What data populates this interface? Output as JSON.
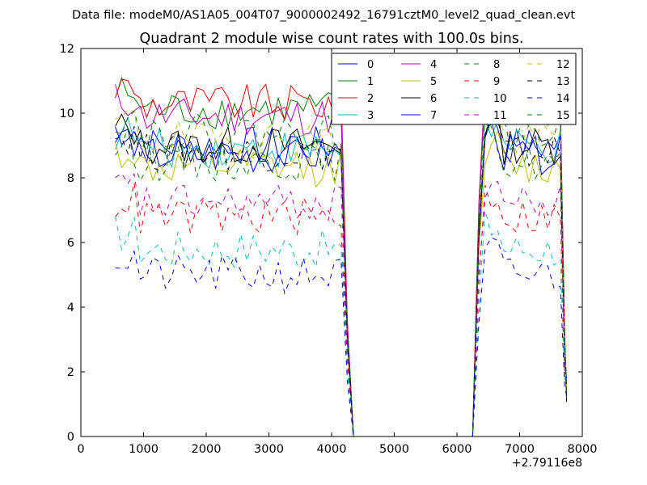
{
  "suptitle": "Data file: modeM0/AS1A05_004T07_9000002492_16791cztM0_level2_quad_clean.evt",
  "chart_data": {
    "type": "line",
    "title": "Quadrant 2 module wise count rates with 100.0s bins.",
    "xlabel": "",
    "ylabel": "",
    "x_offset_label": "+2.79116e8",
    "xlim": [
      0,
      8000
    ],
    "ylim": [
      0,
      12
    ],
    "x_ticks": [
      "0",
      "1000",
      "2000",
      "3000",
      "4000",
      "5000",
      "6000",
      "7000",
      "8000"
    ],
    "y_ticks": [
      "0",
      "2",
      "4",
      "6",
      "8",
      "10",
      "12"
    ],
    "grid": false,
    "legend_position": "top-right",
    "legend_columns": 4,
    "series": [
      {
        "name": "0",
        "color": "#0000ff",
        "dash": "solid",
        "level": 9.0
      },
      {
        "name": "1",
        "color": "#008000",
        "dash": "solid",
        "level": 10.1
      },
      {
        "name": "2",
        "color": "#ff0000",
        "dash": "solid",
        "level": 10.3
      },
      {
        "name": "3",
        "color": "#00bfbf",
        "dash": "solid",
        "level": 8.9
      },
      {
        "name": "4",
        "color": "#bf00bf",
        "dash": "solid",
        "level": 9.9
      },
      {
        "name": "5",
        "color": "#bfbf00",
        "dash": "solid",
        "level": 8.3
      },
      {
        "name": "6",
        "color": "#000000",
        "dash": "solid",
        "level": 9.0
      },
      {
        "name": "7",
        "color": "#0000ff",
        "dash": "solid",
        "level": 8.7
      },
      {
        "name": "8",
        "color": "#008000",
        "dash": "dashed",
        "level": 8.5
      },
      {
        "name": "9",
        "color": "#ff0000",
        "dash": "dashed",
        "level": 6.8
      },
      {
        "name": "10",
        "color": "#00bfbf",
        "dash": "dashed",
        "level": 5.8
      },
      {
        "name": "11",
        "color": "#bf00bf",
        "dash": "dashed",
        "level": 7.2
      },
      {
        "name": "12",
        "color": "#bfbf00",
        "dash": "dashed",
        "level": 9.2
      },
      {
        "name": "13",
        "color": "#000000",
        "dash": "dashed",
        "level": 8.8
      },
      {
        "name": "14",
        "color": "#0000ff",
        "dash": "dashed",
        "level": 5.0
      },
      {
        "name": "15",
        "color": "#008000",
        "dash": "dashed",
        "level": 9.4
      }
    ],
    "segments": [
      {
        "x_start": 550,
        "x_end": 4150,
        "drop_to": 4350
      },
      {
        "x_start": 6250,
        "x_end": 7650,
        "rise_from": 6250,
        "end": 7750
      }
    ]
  }
}
